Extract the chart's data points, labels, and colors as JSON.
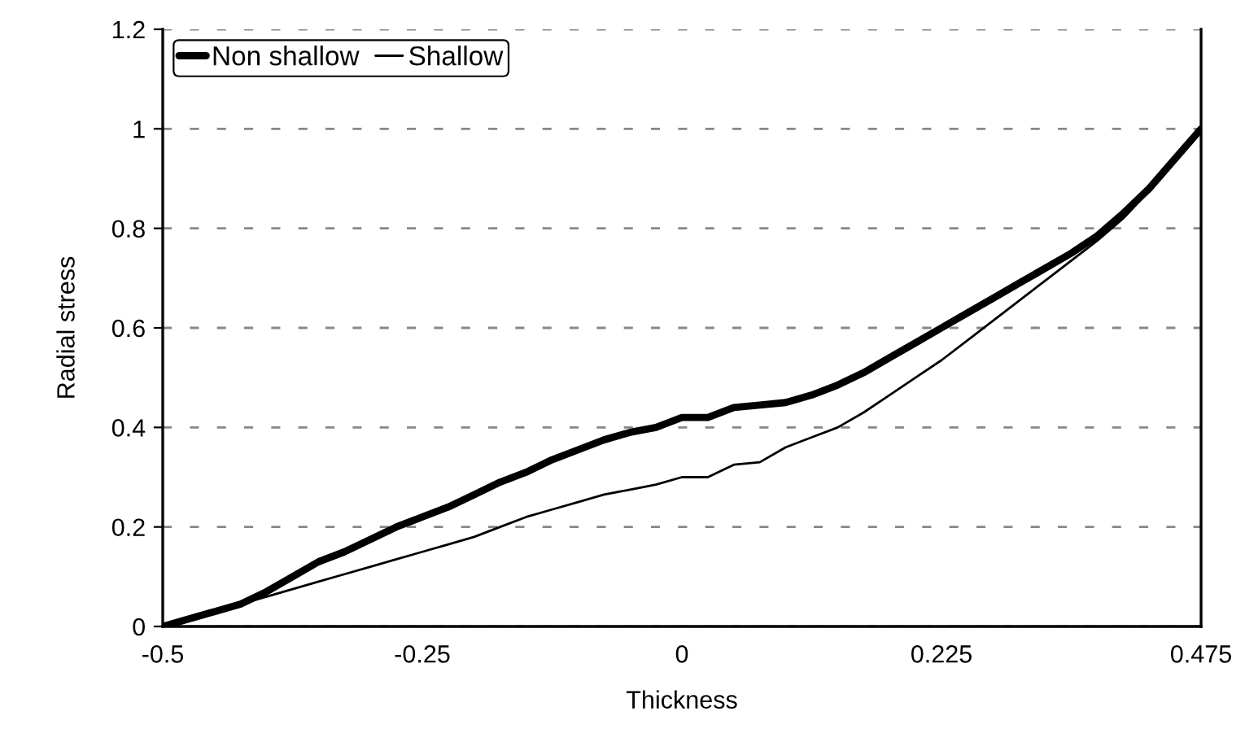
{
  "chart_data": {
    "type": "line",
    "xlabel": "Thickness",
    "ylabel": "Radial stress",
    "categories": [
      "-0.5",
      null,
      null,
      null,
      null,
      null,
      null,
      null,
      null,
      null,
      "-0.25",
      null,
      null,
      null,
      null,
      null,
      null,
      null,
      null,
      null,
      "0",
      null,
      null,
      null,
      null,
      null,
      null,
      null,
      null,
      null,
      "0.225",
      null,
      null,
      null,
      null,
      null,
      null,
      null,
      null,
      null,
      "0.475"
    ],
    "series": [
      {
        "name": "Non shallow",
        "color": "#000000",
        "values": [
          0,
          0.015,
          0.03,
          0.045,
          0.07,
          0.1,
          0.13,
          0.15,
          0.175,
          0.2,
          0.22,
          0.24,
          0.265,
          0.29,
          0.31,
          0.335,
          0.355,
          0.375,
          0.39,
          0.4,
          0.42,
          0.42,
          0.44,
          0.445,
          0.45,
          0.465,
          0.485,
          0.51,
          0.54,
          0.57,
          0.6,
          0.63,
          0.66,
          0.69,
          0.72,
          0.75,
          0.785,
          0.83,
          0.88,
          0.94,
          1.0
        ]
      },
      {
        "name": "Shallow",
        "color": "#000000",
        "values": [
          0,
          0.015,
          0.03,
          0.045,
          0.06,
          0.075,
          0.09,
          0.105,
          0.12,
          0.135,
          0.15,
          0.165,
          0.18,
          0.2,
          0.22,
          0.235,
          0.25,
          0.265,
          0.275,
          0.285,
          0.3,
          0.3,
          0.325,
          0.33,
          0.36,
          0.38,
          0.4,
          0.43,
          0.465,
          0.5,
          0.535,
          0.575,
          0.615,
          0.655,
          0.695,
          0.735,
          0.775,
          0.82,
          0.875,
          0.94,
          1.0
        ]
      }
    ],
    "ylim": [
      0,
      1.2
    ],
    "yticks": [
      0,
      0.2,
      0.4,
      0.6,
      0.8,
      1,
      1.2
    ],
    "grid": "y",
    "legend": "top left",
    "marker": "none",
    "line_style": "solid"
  }
}
